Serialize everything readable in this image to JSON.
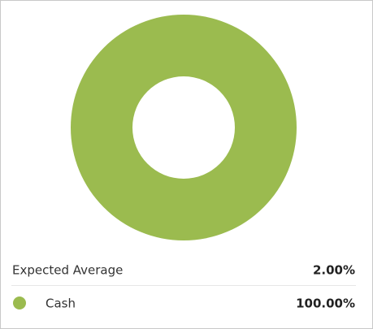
{
  "chart_data": {
    "type": "donut",
    "categories": [
      "Cash"
    ],
    "values": [
      100
    ],
    "value_labels": [
      "100.00%"
    ],
    "colors": [
      "#9bbb4f"
    ]
  },
  "summary": {
    "label": "Expected Average",
    "value": "2.00%"
  }
}
